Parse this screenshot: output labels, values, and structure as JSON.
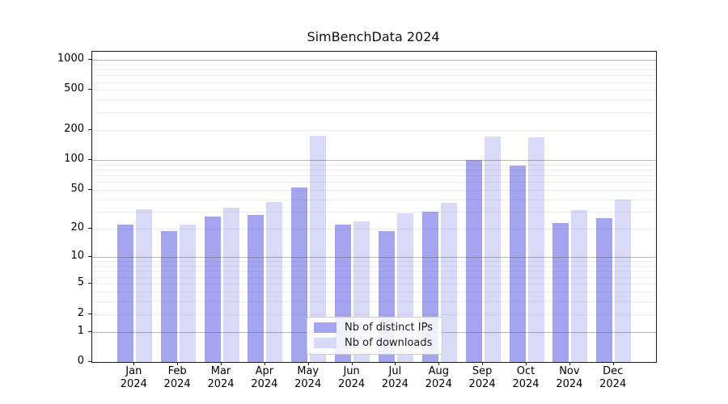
{
  "title": "SimBenchData 2024",
  "chart_data": {
    "type": "bar",
    "title": "SimBenchData 2024",
    "scale": "log-like (position = log10(1+y)), zero shown at axis bottom",
    "grid": true,
    "legend_position": "lower center",
    "categories": [
      "Jan",
      "Feb",
      "Mar",
      "Apr",
      "May",
      "Jun",
      "Jul",
      "Aug",
      "Sep",
      "Oct",
      "Nov",
      "Dec"
    ],
    "year_label": "2024",
    "series": [
      {
        "name": "Nb of distinct IPs",
        "color": "#a4a4ef",
        "values": [
          22,
          19,
          27,
          28,
          53,
          22,
          19,
          30,
          100,
          88,
          23,
          26
        ]
      },
      {
        "name": "Nb of downloads",
        "color": "#d9d9f8",
        "values": [
          32,
          22,
          33,
          38,
          175,
          24,
          29,
          37,
          172,
          168,
          31,
          40
        ]
      }
    ],
    "yticks": [
      0,
      1,
      2,
      5,
      10,
      20,
      50,
      100,
      200,
      500,
      1000
    ],
    "major_gridlines": [
      1,
      10,
      100,
      1000
    ],
    "ylim": [
      0,
      1200
    ],
    "xlabel": "",
    "ylabel": ""
  },
  "colors": {
    "bar_dark": "#a4a4ef",
    "bar_light": "#d9d9f8",
    "grid_major": "#b5b5b5",
    "grid_minor": "#ededed",
    "spine": "#1a1a1a",
    "background": "#ffffff"
  }
}
